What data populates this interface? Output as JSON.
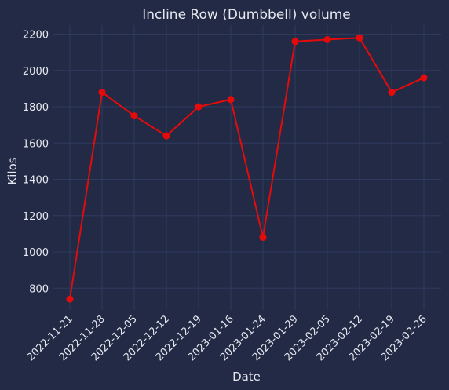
{
  "chart_data": {
    "type": "line",
    "title": "Incline Row (Dumbbell) volume",
    "xlabel": "Date",
    "ylabel": "Kilos",
    "categories": [
      "2022-11-21",
      "2022-11-28",
      "2022-12-05",
      "2022-12-12",
      "2022-12-19",
      "2023-01-16",
      "2023-01-24",
      "2023-01-29",
      "2023-02-05",
      "2023-02-12",
      "2023-02-19",
      "2023-02-26"
    ],
    "values": [
      740,
      1880,
      1750,
      1640,
      1800,
      1840,
      1080,
      2160,
      2170,
      2180,
      1880,
      1960
    ],
    "yticks": [
      800,
      1000,
      1200,
      1400,
      1600,
      1800,
      2000,
      2200
    ],
    "ylim": [
      680,
      2250
    ],
    "grid": true,
    "line_color": "#e60b0b",
    "colors": {
      "background": "#222a45",
      "grid": "#2f3b5e",
      "text": "#e6e8ef"
    }
  }
}
